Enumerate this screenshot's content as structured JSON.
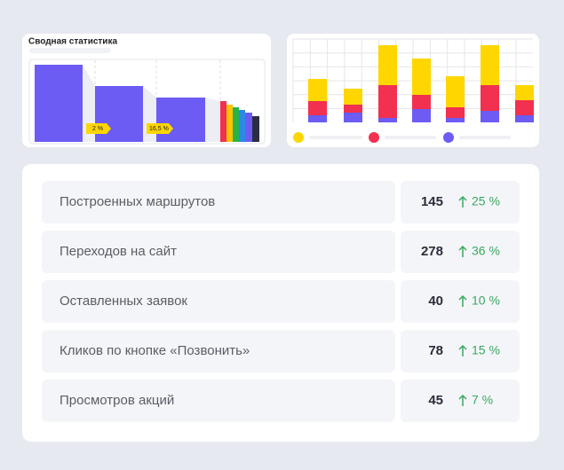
{
  "summary_card": {
    "title": "Сводная статистика",
    "badges": [
      "2 %",
      "16,5 %"
    ]
  },
  "stats_table": {
    "rows": [
      {
        "label": "Построенных маршрутов",
        "value": 145,
        "change": "25 %"
      },
      {
        "label": "Переходов на сайт",
        "value": 278,
        "change": "36 %"
      },
      {
        "label": "Оставленных заявок",
        "value": 40,
        "change": "10 %"
      },
      {
        "label": "Кликов по кнопке «Позвонить»",
        "value": 78,
        "change": "15 %"
      },
      {
        "label": "Просмотров акций",
        "value": 45,
        "change": "7 %"
      }
    ]
  }
}
